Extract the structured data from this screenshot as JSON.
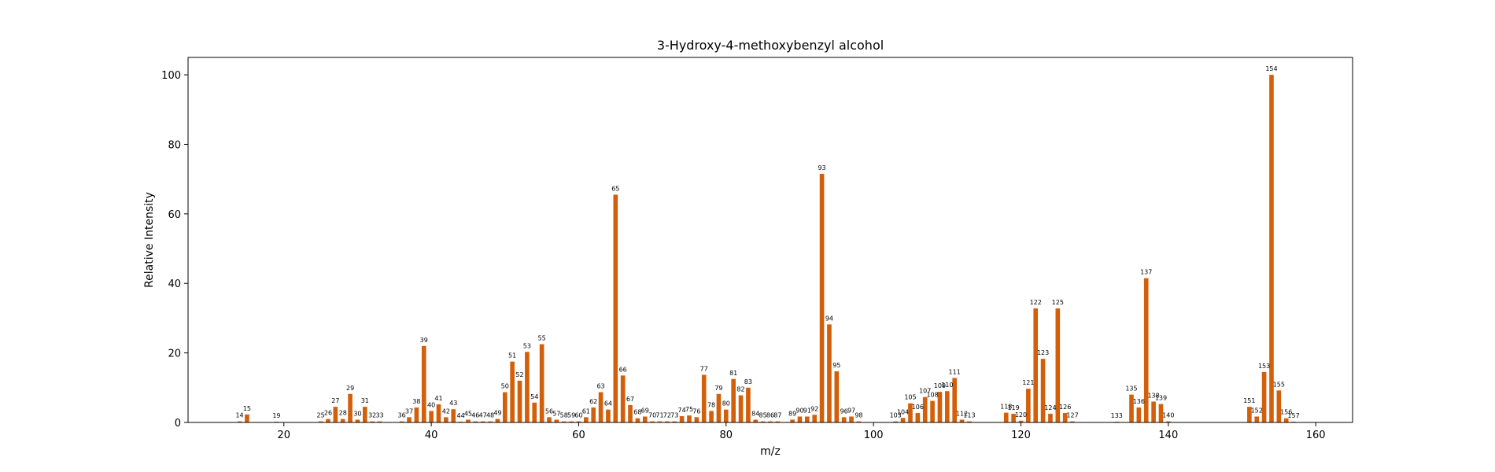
{
  "chart_data": {
    "type": "bar",
    "title": "3-Hydroxy-4-methoxybenzyl alcohol",
    "xlabel": "m/z",
    "ylabel": "Relative Intensity",
    "xlim": [
      7,
      165
    ],
    "ylim": [
      0,
      105
    ],
    "xticks": [
      20,
      40,
      60,
      80,
      100,
      120,
      140,
      160
    ],
    "yticks": [
      0,
      20,
      40,
      60,
      80,
      100
    ],
    "bar_color": "#d35f0a",
    "grid": false,
    "x": [
      14,
      15,
      19,
      25,
      26,
      27,
      28,
      29,
      30,
      31,
      32,
      33,
      36,
      37,
      38,
      39,
      40,
      41,
      42,
      43,
      44,
      45,
      46,
      47,
      48,
      49,
      50,
      51,
      52,
      53,
      54,
      55,
      56,
      57,
      58,
      59,
      60,
      61,
      62,
      63,
      64,
      65,
      66,
      67,
      68,
      69,
      70,
      71,
      72,
      73,
      74,
      75,
      76,
      77,
      78,
      79,
      80,
      81,
      82,
      83,
      84,
      85,
      86,
      87,
      89,
      90,
      91,
      92,
      93,
      94,
      95,
      96,
      97,
      98,
      103,
      104,
      105,
      106,
      107,
      108,
      109,
      110,
      111,
      112,
      113,
      118,
      119,
      120,
      121,
      122,
      123,
      124,
      125,
      126,
      127,
      133,
      135,
      136,
      137,
      138,
      139,
      140,
      151,
      152,
      153,
      154,
      155,
      156,
      157
    ],
    "values": [
      0.3,
      2.3,
      0.2,
      0.3,
      1.0,
      4.5,
      1.0,
      8.2,
      0.8,
      4.5,
      0.3,
      0.3,
      0.3,
      1.5,
      4.3,
      22.0,
      3.3,
      5.2,
      1.5,
      3.8,
      0.2,
      0.8,
      0.3,
      0.3,
      0.3,
      1.0,
      8.7,
      17.5,
      12.0,
      20.3,
      5.7,
      22.5,
      1.5,
      0.8,
      0.3,
      0.3,
      0.3,
      1.5,
      4.3,
      8.7,
      3.7,
      65.5,
      13.5,
      5.0,
      1.2,
      1.7,
      0.3,
      0.3,
      0.3,
      0.3,
      1.8,
      2.0,
      1.5,
      13.7,
      3.3,
      8.2,
      3.7,
      12.5,
      7.8,
      10.0,
      0.8,
      0.3,
      0.3,
      0.3,
      0.8,
      1.7,
      1.7,
      2.2,
      71.5,
      28.2,
      14.7,
      1.5,
      1.7,
      0.3,
      0.3,
      1.3,
      5.5,
      2.7,
      7.3,
      6.2,
      8.8,
      9.0,
      12.8,
      0.8,
      0.3,
      2.8,
      2.5,
      0.5,
      9.7,
      32.8,
      18.3,
      2.5,
      32.8,
      2.7,
      0.3,
      0.2,
      8.0,
      4.3,
      41.5,
      6.0,
      5.3,
      0.3,
      4.5,
      1.7,
      14.5,
      100.0,
      9.2,
      1.2,
      0.2
    ]
  }
}
